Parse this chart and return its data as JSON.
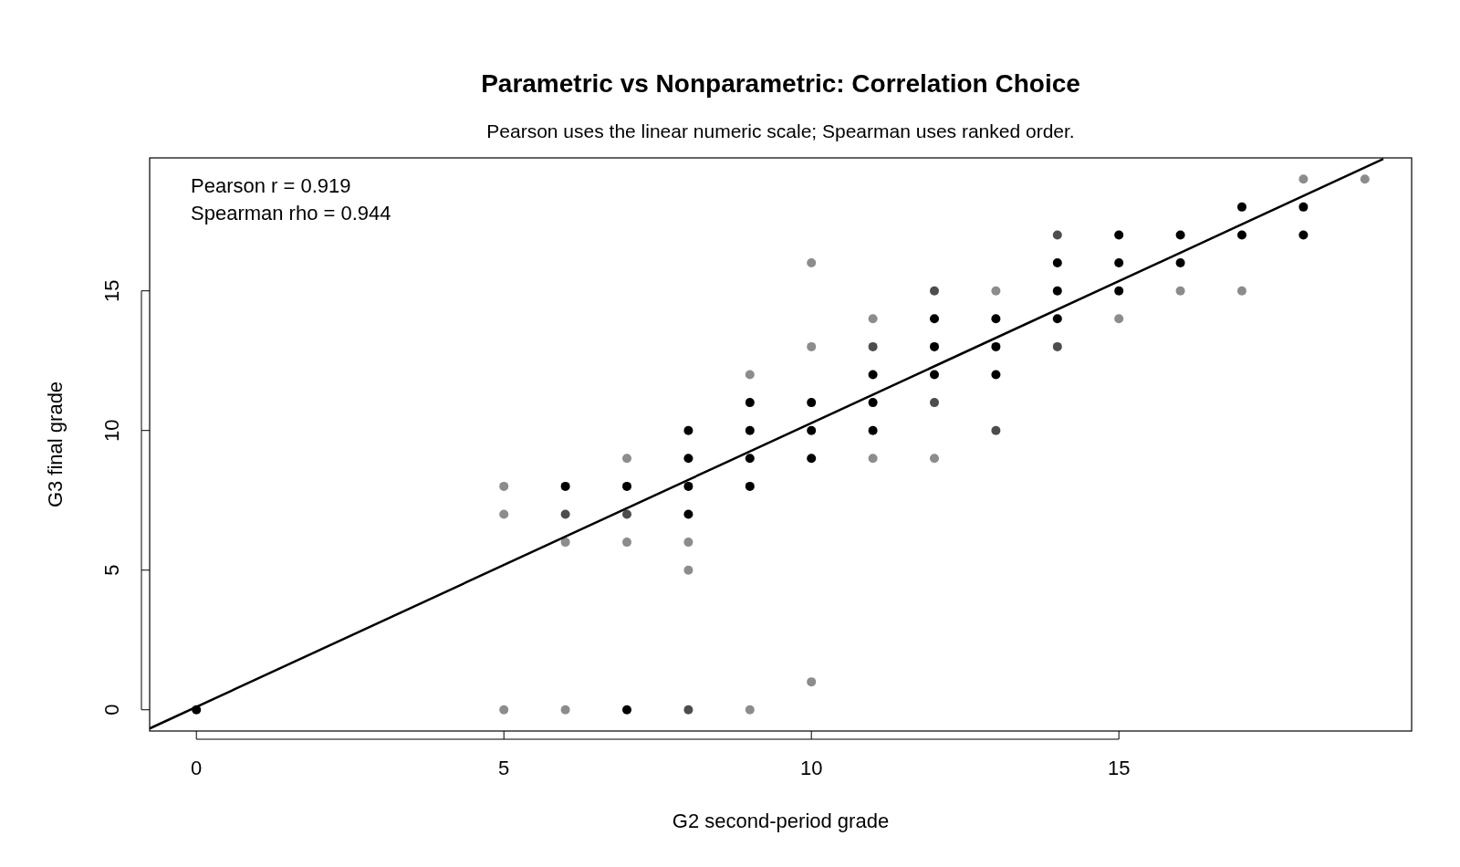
{
  "chart_data": {
    "type": "scatter",
    "title": "Parametric vs Nonparametric: Correlation Choice",
    "subtitle": "Pearson uses the linear numeric scale; Spearman uses ranked order.",
    "xlabel": "G2 second-period grade",
    "ylabel": "G3 final grade",
    "annotations": [
      "Pearson r = 0.919",
      "Spearman rho = 0.944"
    ],
    "xlim": [
      -0.76,
      19.76
    ],
    "ylim": [
      -0.76,
      19.76
    ],
    "xticks": [
      0,
      5,
      10,
      15
    ],
    "yticks": [
      0,
      5,
      10,
      15
    ],
    "grid": false,
    "series": [
      {
        "marker": "circle",
        "color": "#000000",
        "x": [
          0,
          6,
          7,
          7,
          8,
          8,
          8,
          8,
          9,
          9,
          9,
          9,
          10,
          10,
          10,
          11,
          11,
          11,
          12,
          12,
          12,
          13,
          13,
          13,
          14,
          14,
          14,
          15,
          15,
          15,
          16,
          16,
          17,
          17,
          18,
          18
        ],
        "values": [
          0,
          8,
          8,
          0,
          10,
          9,
          8,
          7,
          11,
          10,
          9,
          8,
          11,
          10,
          9,
          12,
          11,
          10,
          14,
          13,
          12,
          14,
          13,
          12,
          16,
          15,
          14,
          17,
          16,
          15,
          17,
          16,
          18,
          17,
          18,
          17
        ]
      },
      {
        "marker": "circle",
        "color": "#4d4d4d",
        "x": [
          6,
          7,
          8,
          11,
          12,
          12,
          13,
          14,
          14
        ],
        "values": [
          7,
          7,
          0,
          13,
          15,
          11,
          10,
          17,
          13
        ]
      },
      {
        "marker": "circle",
        "color": "#8c8c8c",
        "x": [
          5,
          5,
          5,
          6,
          6,
          7,
          7,
          8,
          8,
          9,
          9,
          10,
          10,
          10,
          11,
          11,
          12,
          13,
          15,
          16,
          17,
          18,
          19
        ],
        "values": [
          8,
          7,
          0,
          6,
          0,
          9,
          6,
          6,
          5,
          12,
          0,
          16,
          13,
          1,
          14,
          9,
          9,
          15,
          14,
          15,
          15,
          19,
          19
        ]
      },
      {
        "type": "line",
        "marker": "none",
        "color": "#000000",
        "x": [
          -0.76,
          19.3
        ],
        "values": [
          -0.67,
          19.72
        ]
      }
    ]
  }
}
